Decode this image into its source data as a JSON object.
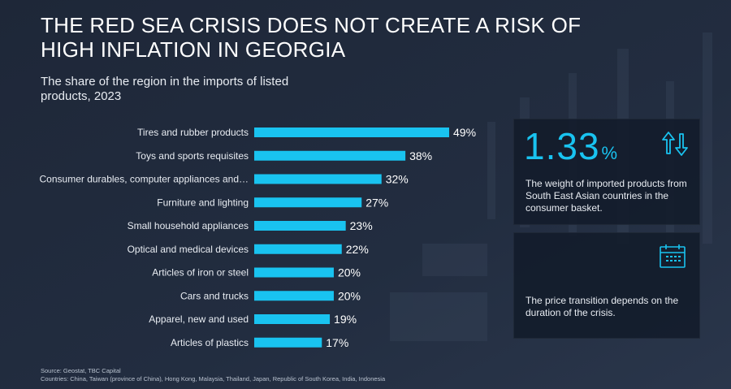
{
  "title": "THE RED SEA CRISIS DOES NOT CREATE A RISK OF HIGH INFLATION IN GEORGIA",
  "subtitle": "The share of the region in the imports of listed products, 2023",
  "chart_data": {
    "type": "bar",
    "orientation": "horizontal",
    "title": "The share of the region in the imports of listed products, 2023",
    "categories": [
      "Tires and rubber products",
      "Toys and sports requisites",
      "Consumer durables, computer appliances and…",
      "Furniture and lighting",
      "Small household appliances",
      "Optical and medical devices",
      "Articles of iron or steel",
      "Cars and trucks",
      "Apparel, new and used",
      "Articles of plastics"
    ],
    "values": [
      49,
      38,
      32,
      27,
      23,
      22,
      20,
      20,
      19,
      17
    ],
    "value_labels": [
      "49%",
      "38%",
      "32%",
      "27%",
      "23%",
      "22%",
      "20%",
      "20%",
      "19%",
      "17%"
    ],
    "unit": "%",
    "xlim": [
      0,
      49
    ],
    "grid": false,
    "bar_color": "#19c3f0"
  },
  "cards": {
    "weight": {
      "value": "1.33",
      "unit": "%",
      "text": "The weight of imported products from South East Asian countries in the consumer basket.",
      "icon": "up-down-arrows-icon"
    },
    "transition": {
      "text": "The price transition depends on the duration of the crisis.",
      "icon": "calendar-icon"
    }
  },
  "footer": {
    "source": "Source: Geostat, TBC Capital",
    "countries": "Countries: China, Taiwan (province of China), Hong Kong, Malaysia, Thailand, Japan, Republic of South Korea, India, Indonesia"
  },
  "colors": {
    "accent": "#19c3f0",
    "background": "#1b2434",
    "text": "#ffffff"
  }
}
